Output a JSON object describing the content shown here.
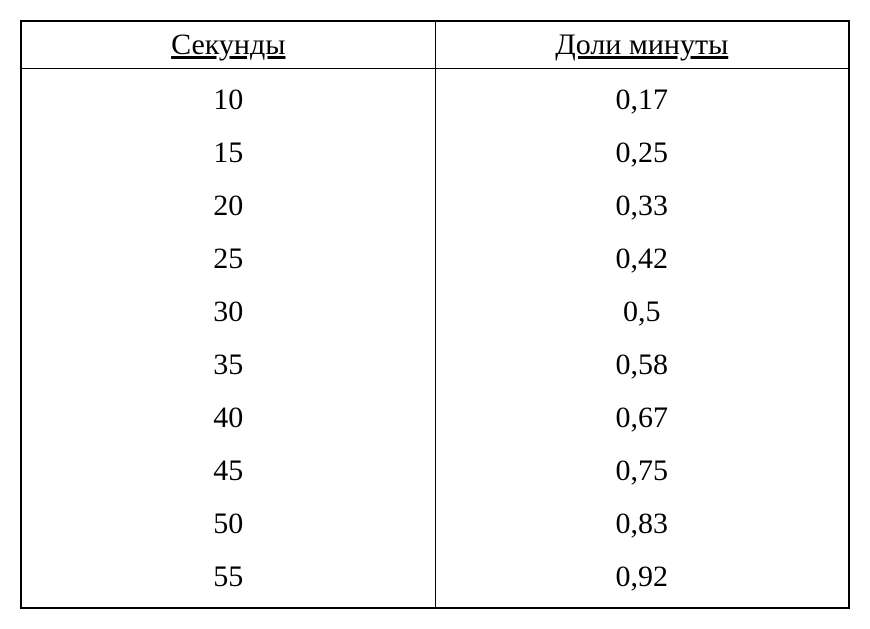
{
  "table": {
    "type": "table",
    "columns": [
      "Секунды",
      "Доли минуты"
    ],
    "rows": [
      [
        "10",
        "0,17"
      ],
      [
        "15",
        "0,25"
      ],
      [
        "20",
        "0,33"
      ],
      [
        "25",
        "0,42"
      ],
      [
        "30",
        "0,5"
      ],
      [
        "35",
        "0,58"
      ],
      [
        "40",
        "0,67"
      ],
      [
        "45",
        "0,75"
      ],
      [
        "50",
        "0,83"
      ],
      [
        "55",
        "0,92"
      ]
    ],
    "column_widths": [
      "50%",
      "50%"
    ],
    "border_color": "#000000",
    "background_color": "#ffffff",
    "text_color": "#000000",
    "header_fontsize": 30,
    "cell_fontsize": 30,
    "font_family": "Times New Roman",
    "header_underline": true,
    "text_align": "center"
  }
}
